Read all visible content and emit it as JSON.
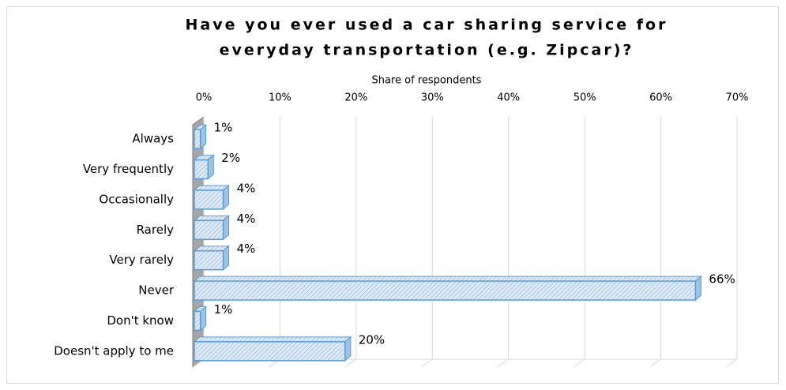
{
  "chart_data": {
    "type": "bar3d",
    "orientation": "horizontal",
    "title": [
      "Have you ever used a car sharing service for",
      "everyday transportation (e.g. Zipcar)?"
    ],
    "x_label": "Share of respondents",
    "categories": [
      "Always",
      "Very frequently",
      "Occasionally",
      "Rarely",
      "Very rarely",
      "Never",
      "Don't know",
      "Doesn't apply to me"
    ],
    "values": [
      1,
      2,
      4,
      4,
      4,
      66,
      1,
      20
    ],
    "value_labels": [
      "1%",
      "2%",
      "4%",
      "4%",
      "4%",
      "66%",
      "1%",
      "20%"
    ],
    "color": "#5b9bd5",
    "xlim": [
      0,
      70
    ],
    "xticks": [
      {
        "value": 0,
        "label": "0%"
      },
      {
        "value": 10,
        "label": "10%"
      },
      {
        "value": 20,
        "label": "20%"
      },
      {
        "value": 30,
        "label": "30%"
      },
      {
        "value": 40,
        "label": "40%"
      },
      {
        "value": 50,
        "label": "50%"
      },
      {
        "value": 60,
        "label": "60%"
      },
      {
        "value": 70,
        "label": "70%"
      }
    ],
    "grid": true
  }
}
